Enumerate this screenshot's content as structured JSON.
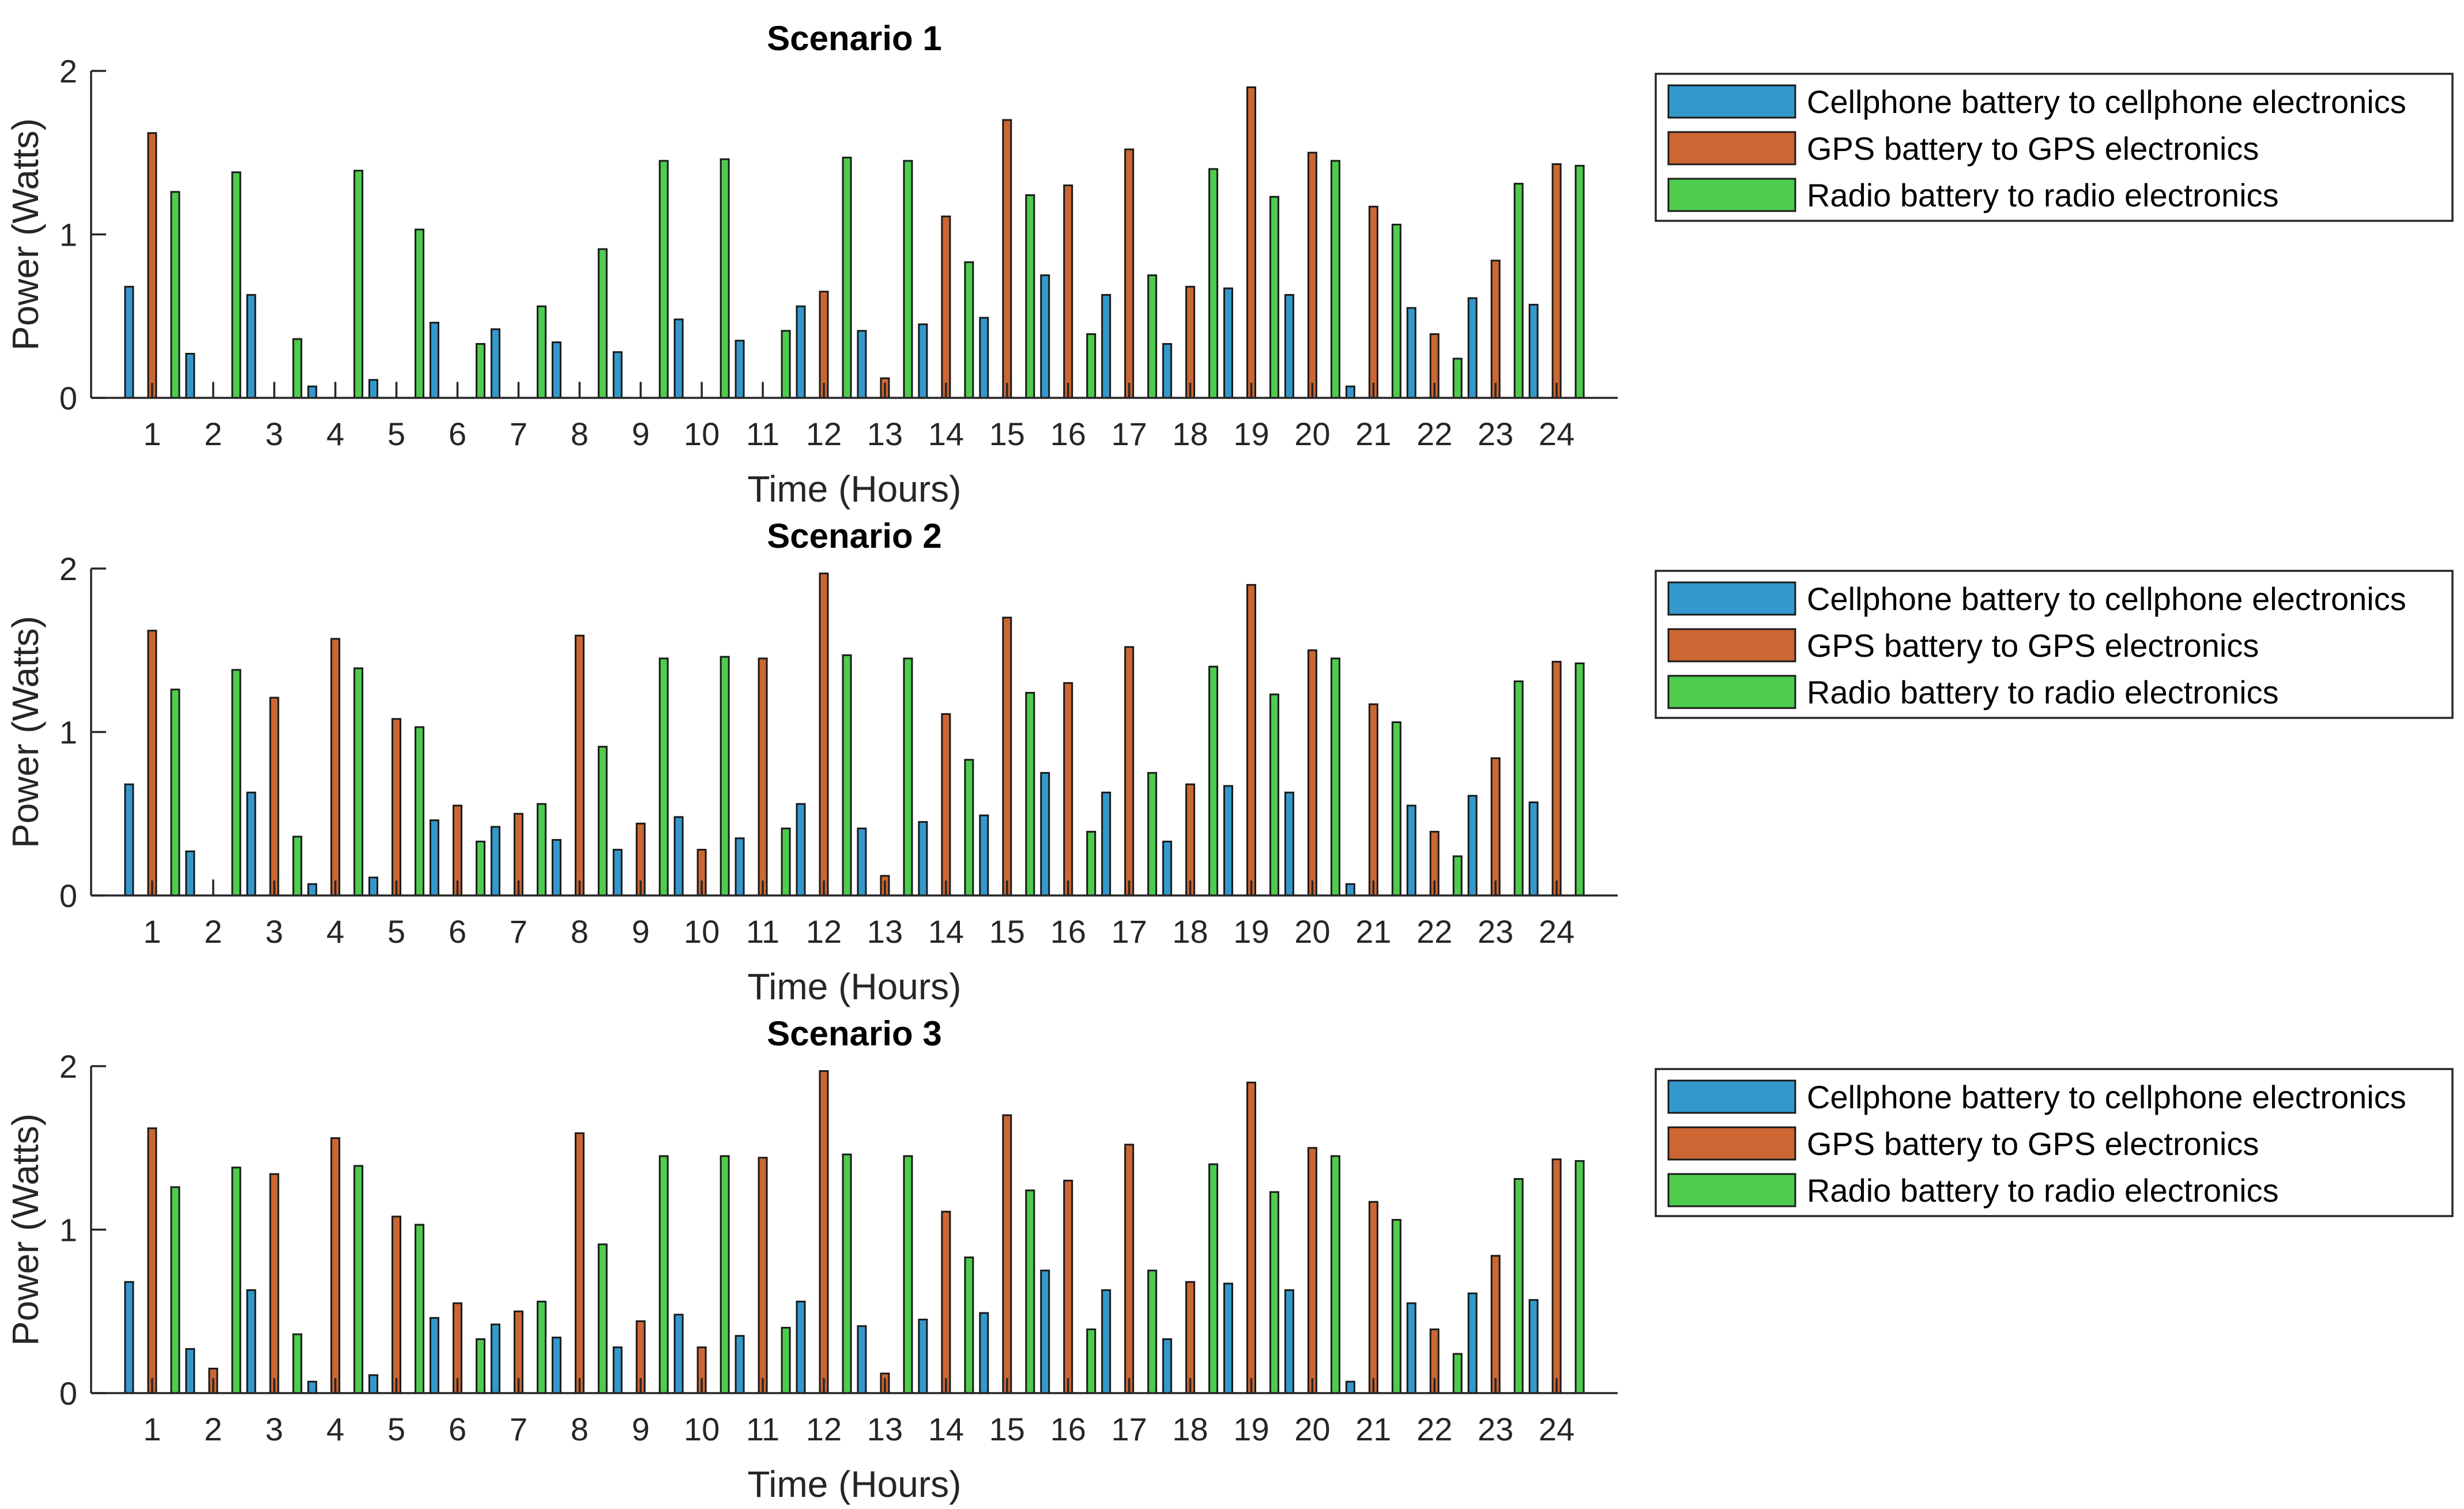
{
  "chart_data": [
    {
      "type": "bar",
      "title": "Scenario 1",
      "xlabel": "Time (Hours)",
      "ylabel": "Power (Watts)",
      "ylim": [
        0,
        2
      ],
      "yticks": [
        0,
        1,
        2
      ],
      "categories": [
        "1",
        "2",
        "3",
        "4",
        "5",
        "6",
        "7",
        "8",
        "9",
        "10",
        "11",
        "12",
        "13",
        "14",
        "15",
        "16",
        "17",
        "18",
        "19",
        "20",
        "21",
        "22",
        "23",
        "24"
      ],
      "legend_position": "outside-right-top",
      "grid": false,
      "series": [
        {
          "name": "Cellphone battery to cellphone electronics",
          "color": "#3399cc",
          "values": [
            0.68,
            0.27,
            0.63,
            0.07,
            0.11,
            0.46,
            0.42,
            0.34,
            0.28,
            0.48,
            0.35,
            0.56,
            0.41,
            0.45,
            0.49,
            0.75,
            0.63,
            0.33,
            0.67,
            0.63,
            0.07,
            0.55,
            0.61,
            0.57
          ]
        },
        {
          "name": "GPS battery to GPS electronics",
          "color": "#cc6633",
          "values": [
            1.62,
            0,
            0,
            0,
            0,
            0,
            0,
            0,
            0,
            0,
            0,
            0.65,
            0.12,
            1.11,
            1.7,
            1.3,
            1.52,
            0.68,
            1.9,
            1.5,
            1.17,
            0.39,
            0.84,
            1.43
          ]
        },
        {
          "name": "Radio battery to radio electronics",
          "color": "#4dcc4d",
          "values": [
            1.26,
            1.38,
            0.36,
            1.39,
            1.03,
            0.33,
            0.56,
            0.91,
            1.45,
            1.46,
            0.41,
            1.47,
            1.45,
            0.83,
            1.24,
            0.39,
            0.75,
            1.4,
            1.23,
            1.45,
            1.06,
            0.24,
            1.31,
            1.42
          ]
        }
      ]
    },
    {
      "type": "bar",
      "title": "Scenario 2",
      "xlabel": "Time (Hours)",
      "ylabel": "Power (Watts)",
      "ylim": [
        0,
        2
      ],
      "yticks": [
        0,
        1,
        2
      ],
      "categories": [
        "1",
        "2",
        "3",
        "4",
        "5",
        "6",
        "7",
        "8",
        "9",
        "10",
        "11",
        "12",
        "13",
        "14",
        "15",
        "16",
        "17",
        "18",
        "19",
        "20",
        "21",
        "22",
        "23",
        "24"
      ],
      "legend_position": "outside-right-top",
      "grid": false,
      "series": [
        {
          "name": "Cellphone battery to cellphone electronics",
          "color": "#3399cc",
          "values": [
            0.68,
            0.27,
            0.63,
            0.07,
            0.11,
            0.46,
            0.42,
            0.34,
            0.28,
            0.48,
            0.35,
            0.56,
            0.41,
            0.45,
            0.49,
            0.75,
            0.63,
            0.33,
            0.67,
            0.63,
            0.07,
            0.55,
            0.61,
            0.57
          ]
        },
        {
          "name": "GPS battery to GPS electronics",
          "color": "#cc6633",
          "values": [
            1.62,
            0,
            1.21,
            1.57,
            1.08,
            0.55,
            0.5,
            1.59,
            0.44,
            0.28,
            1.45,
            1.97,
            0.12,
            1.11,
            1.7,
            1.3,
            1.52,
            0.68,
            1.9,
            1.5,
            1.17,
            0.39,
            0.84,
            1.43
          ]
        },
        {
          "name": "Radio battery to radio electronics",
          "color": "#4dcc4d",
          "values": [
            1.26,
            1.38,
            0.36,
            1.39,
            1.03,
            0.33,
            0.56,
            0.91,
            1.45,
            1.46,
            0.41,
            1.47,
            1.45,
            0.83,
            1.24,
            0.39,
            0.75,
            1.4,
            1.23,
            1.45,
            1.06,
            0.24,
            1.31,
            1.42
          ]
        }
      ]
    },
    {
      "type": "bar",
      "title": "Scenario 3",
      "xlabel": "Time (Hours)",
      "ylabel": "Power (Watts)",
      "ylim": [
        0,
        2
      ],
      "yticks": [
        0,
        1,
        2
      ],
      "categories": [
        "1",
        "2",
        "3",
        "4",
        "5",
        "6",
        "7",
        "8",
        "9",
        "10",
        "11",
        "12",
        "13",
        "14",
        "15",
        "16",
        "17",
        "18",
        "19",
        "20",
        "21",
        "22",
        "23",
        "24"
      ],
      "legend_position": "outside-right-top",
      "grid": false,
      "series": [
        {
          "name": "Cellphone battery to cellphone electronics",
          "color": "#3399cc",
          "values": [
            0.68,
            0.27,
            0.63,
            0.07,
            0.11,
            0.46,
            0.42,
            0.34,
            0.28,
            0.48,
            0.35,
            0.56,
            0.41,
            0.45,
            0.49,
            0.75,
            0.63,
            0.33,
            0.67,
            0.63,
            0.07,
            0.55,
            0.61,
            0.57
          ]
        },
        {
          "name": "GPS battery to GPS electronics",
          "color": "#cc6633",
          "values": [
            1.62,
            0.15,
            1.34,
            1.56,
            1.08,
            0.55,
            0.5,
            1.59,
            0.44,
            0.28,
            1.44,
            1.97,
            0.12,
            1.11,
            1.7,
            1.3,
            1.52,
            0.68,
            1.9,
            1.5,
            1.17,
            0.39,
            0.84,
            1.43
          ]
        },
        {
          "name": "Radio battery to radio electronics",
          "color": "#4dcc4d",
          "values": [
            1.26,
            1.38,
            0.36,
            1.39,
            1.03,
            0.33,
            0.56,
            0.91,
            1.45,
            1.45,
            0.4,
            1.46,
            1.45,
            0.83,
            1.24,
            0.39,
            0.75,
            1.4,
            1.23,
            1.45,
            1.06,
            0.24,
            1.31,
            1.42
          ]
        }
      ]
    }
  ]
}
